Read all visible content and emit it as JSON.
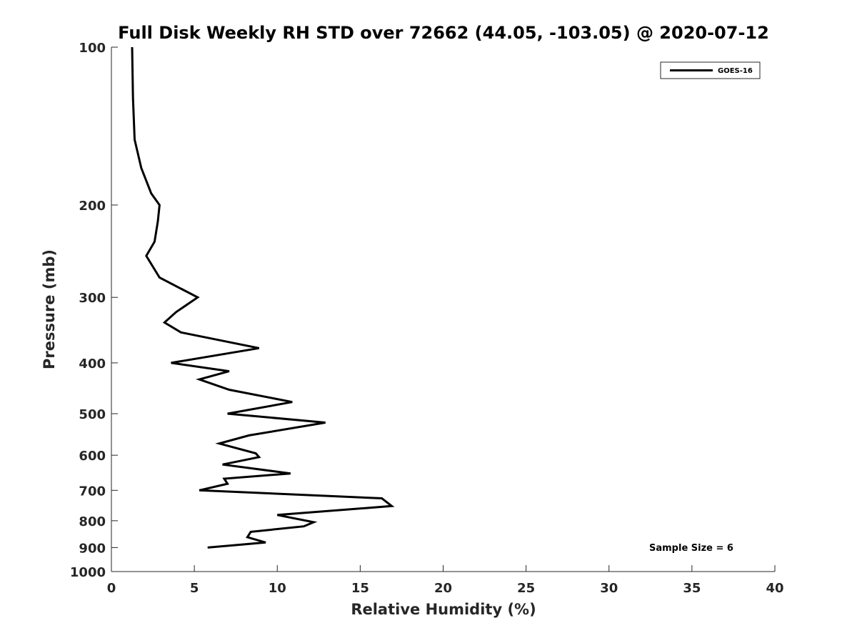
{
  "chart_data": {
    "type": "line",
    "title": "Full Disk Weekly RH STD over 72662 (44.05, -103.05) @ 2020-07-12",
    "xlabel": "Relative Humidity (%)",
    "ylabel": "Pressure (mb)",
    "xlim": [
      0,
      40
    ],
    "ylim": [
      100,
      1000
    ],
    "yscale": "log",
    "yreversed": true,
    "xticks": [
      0,
      5,
      10,
      15,
      20,
      25,
      30,
      35,
      40
    ],
    "yticks": [
      100,
      200,
      300,
      400,
      500,
      600,
      700,
      800,
      900,
      1000
    ],
    "grid": false,
    "legend": {
      "entries": [
        "GOES-16"
      ],
      "placement": "top-right"
    },
    "annotation": "Sample Size = 6",
    "series": [
      {
        "name": "GOES-16",
        "color": "#000000",
        "points": [
          {
            "x": 1.25,
            "y": 100
          },
          {
            "x": 1.3,
            "y": 125
          },
          {
            "x": 1.4,
            "y": 150
          },
          {
            "x": 1.8,
            "y": 170
          },
          {
            "x": 2.4,
            "y": 190
          },
          {
            "x": 2.9,
            "y": 200
          },
          {
            "x": 2.8,
            "y": 215
          },
          {
            "x": 2.6,
            "y": 235
          },
          {
            "x": 2.1,
            "y": 250
          },
          {
            "x": 2.9,
            "y": 275
          },
          {
            "x": 5.2,
            "y": 300
          },
          {
            "x": 3.9,
            "y": 320
          },
          {
            "x": 3.2,
            "y": 335
          },
          {
            "x": 4.2,
            "y": 350
          },
          {
            "x": 8.9,
            "y": 375
          },
          {
            "x": 3.6,
            "y": 400
          },
          {
            "x": 7.1,
            "y": 415
          },
          {
            "x": 5.3,
            "y": 430
          },
          {
            "x": 7.1,
            "y": 450
          },
          {
            "x": 10.9,
            "y": 475
          },
          {
            "x": 7.0,
            "y": 500
          },
          {
            "x": 12.9,
            "y": 520
          },
          {
            "x": 8.3,
            "y": 550
          },
          {
            "x": 6.5,
            "y": 570
          },
          {
            "x": 8.7,
            "y": 595
          },
          {
            "x": 8.9,
            "y": 605
          },
          {
            "x": 6.7,
            "y": 625
          },
          {
            "x": 10.8,
            "y": 650
          },
          {
            "x": 6.8,
            "y": 665
          },
          {
            "x": 7.0,
            "y": 680
          },
          {
            "x": 5.3,
            "y": 700
          },
          {
            "x": 16.3,
            "y": 725
          },
          {
            "x": 16.9,
            "y": 750
          },
          {
            "x": 10.0,
            "y": 780
          },
          {
            "x": 12.2,
            "y": 805
          },
          {
            "x": 11.6,
            "y": 820
          },
          {
            "x": 8.4,
            "y": 840
          },
          {
            "x": 8.2,
            "y": 860
          },
          {
            "x": 9.3,
            "y": 880
          },
          {
            "x": 5.8,
            "y": 900
          }
        ]
      }
    ]
  }
}
